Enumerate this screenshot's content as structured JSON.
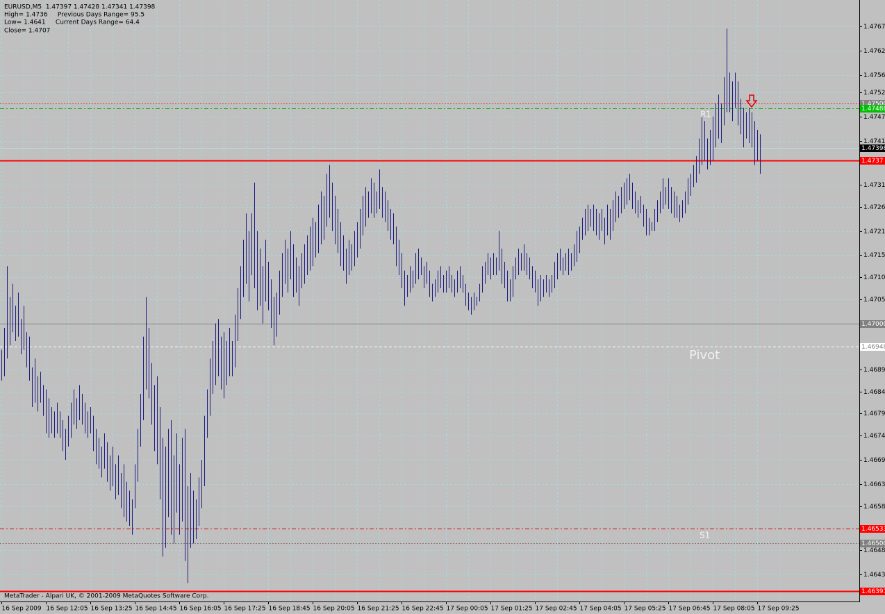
{
  "chart_data": {
    "type": "ohlc",
    "info": [
      "EURUSD,M5  1.47397 1.47428 1.47341 1.47398",
      "High= 1.4736     Previous Days Range= 95.5",
      "Low= 1.4641     Current Days Range= 64.4",
      "Close= 1.4707"
    ],
    "footer": "MetaTrader - Alpari UK, © 2001-2009 MetaQuotes Software Corp.",
    "color": "#1c1c80",
    "grid": true,
    "ylim": [
      1.46368,
      1.47735
    ],
    "yticks": [
      1.47675,
      {
        "value": 1.4762,
        "label": "1.47620"
      },
      1.47565,
      1.47525,
      {
        "value": 1.4747,
        "label": "1.47470"
      },
      1.47415,
      1.47315,
      1.47265,
      {
        "value": 1.4721,
        "label": "1.47210"
      },
      1.47155,
      1.47105,
      1.47055,
      1.46895,
      1.46845,
      1.46795,
      1.46745,
      {
        "value": 1.4669,
        "label": "1.46690"
      },
      1.46635,
      1.46585,
      1.46485,
      {
        "value": 1.4643,
        "label": "1.46430"
      }
    ],
    "xtick_labels": [
      "16 Sep 2009",
      "16 Sep 12:05",
      "16 Sep 13:25",
      "16 Sep 14:45",
      "16 Sep 16:05",
      "16 Sep 17:25",
      "16 Sep 18:45",
      "16 Sep 20:05",
      "16 Sep 21:25",
      "16 Sep 22:45",
      "17 Sep 00:05",
      "17 Sep 01:25",
      "17 Sep 02:45",
      "17 Sep 04:05",
      "17 Sep 05:25",
      "17 Sep 06:45",
      "17 Sep 08:05",
      "17 Sep 09:25"
    ],
    "levels": [
      {
        "value": {
          "value": 1.475,
          "label": "1.47500"
        },
        "color": "#d04040",
        "style": "dot",
        "box": "#808080"
      },
      {
        "value": 1.47488,
        "color": "#00b000",
        "style": "dashdot",
        "box": "#00c000"
      },
      {
        "value": 1.47398,
        "color": "#b8dcdc",
        "style": "solid",
        "box": "#000000"
      },
      {
        "value": 1.4737,
        "color": "#ff0000",
        "style": "thick",
        "box": "#ff0000"
      },
      {
        "value": {
          "value": 1.47,
          "label": "1.47000"
        },
        "color": "#808080",
        "style": "solid",
        "box": "#808080"
      },
      {
        "value": 1.46948,
        "color": "#ffffff",
        "style": "dash",
        "box": "#ffffff"
      },
      {
        "value": 1.46533,
        "color": "#e00000",
        "style": "dashdot",
        "box": "#ff0000"
      },
      {
        "value": {
          "value": 1.465,
          "label": "1.46500"
        },
        "color": "#808080",
        "style": "dot",
        "box": "#808080"
      },
      {
        "value": 1.46391,
        "color": "#ff0000",
        "style": "thick",
        "box": "#ff0000"
      }
    ],
    "annotations": [
      "R1",
      "Pivot",
      "S1"
    ],
    "high": [
      1.4694,
      1.4699,
      1.4713,
      1.4706,
      1.4709,
      1.4704,
      1.4707,
      1.4701,
      1.4704,
      1.4698,
      1.4697,
      1.469,
      1.4692,
      1.4688,
      1.4689,
      1.4686,
      1.4685,
      1.4683,
      1.4681,
      1.468,
      1.4682,
      1.468,
      1.4678,
      1.4676,
      1.4679,
      1.4682,
      1.4685,
      1.4683,
      1.4686,
      1.4684,
      1.4682,
      1.468,
      1.4681,
      1.4679,
      1.4676,
      1.4674,
      1.4672,
      1.4675,
      1.4673,
      1.467,
      1.4672,
      1.4668,
      1.467,
      1.4666,
      1.4668,
      1.4664,
      1.4662,
      1.466,
      1.4668,
      1.4676,
      1.4684,
      1.4697,
      1.4706,
      1.4699,
      1.4691,
      1.4686,
      1.4688,
      1.4681,
      1.4674,
      1.4672,
      1.4676,
      1.4678,
      1.467,
      1.4675,
      1.4668,
      1.4674,
      1.4676,
      1.4663,
      1.4666,
      1.4662,
      1.466,
      1.4665,
      1.4669,
      1.4679,
      1.4685,
      1.4692,
      1.4696,
      1.47,
      1.4701,
      1.4697,
      1.4698,
      1.4696,
      1.4699,
      1.4696,
      1.4702,
      1.4708,
      1.4713,
      1.4719,
      1.4725,
      1.4721,
      1.4725,
      1.4732,
      1.4721,
      1.4717,
      1.4713,
      1.4719,
      1.4714,
      1.471,
      1.4706,
      1.4707,
      1.4712,
      1.4716,
      1.4719,
      1.4717,
      1.4721,
      1.4718,
      1.4715,
      1.4713,
      1.4716,
      1.4718,
      1.472,
      1.4722,
      1.4724,
      1.4723,
      1.4727,
      1.473,
      1.4729,
      1.4734,
      1.4736,
      1.4732,
      1.4729,
      1.4726,
      1.4723,
      1.472,
      1.4717,
      1.4719,
      1.4718,
      1.4721,
      1.4723,
      1.4726,
      1.4729,
      1.4731,
      1.473,
      1.4733,
      1.4732,
      1.473,
      1.4735,
      1.4731,
      1.473,
      1.4728,
      1.4726,
      1.4725,
      1.4722,
      1.4719,
      1.4716,
      1.4712,
      1.4711,
      1.4713,
      1.4712,
      1.4716,
      1.4717,
      1.4715,
      1.4713,
      1.4714,
      1.4712,
      1.4709,
      1.471,
      1.4712,
      1.4713,
      1.4711,
      1.4712,
      1.4713,
      1.4711,
      1.471,
      1.4712,
      1.4713,
      1.4711,
      1.4709,
      1.4707,
      1.4706,
      1.4707,
      1.4706,
      1.4709,
      1.4713,
      1.4714,
      1.4716,
      1.4715,
      1.4716,
      1.4715,
      1.4721,
      1.4717,
      1.4714,
      1.4712,
      1.471,
      1.4713,
      1.4715,
      1.4717,
      1.4716,
      1.4718,
      1.4716,
      1.4715,
      1.4713,
      1.4712,
      1.471,
      1.4711,
      1.471,
      1.4711,
      1.471,
      1.4711,
      1.4714,
      1.4716,
      1.4717,
      1.4715,
      1.4716,
      1.4717,
      1.4716,
      1.4718,
      1.4721,
      1.4722,
      1.4724,
      1.4726,
      1.4727,
      1.4726,
      1.4727,
      1.4726,
      1.4725,
      1.4726,
      1.4724,
      1.4727,
      1.4726,
      1.4728,
      1.473,
      1.4729,
      1.4731,
      1.4732,
      1.4733,
      1.4734,
      1.4732,
      1.473,
      1.4728,
      1.4729,
      1.4727,
      1.4726,
      1.4724,
      1.4723,
      1.4726,
      1.4728,
      1.473,
      1.4733,
      1.4731,
      1.4733,
      1.4731,
      1.473,
      1.4729,
      1.4727,
      1.4728,
      1.473,
      1.4733,
      1.4734,
      1.4736,
      1.4738,
      1.4742,
      1.4747,
      1.4746,
      1.4742,
      1.4744,
      1.4747,
      1.475,
      1.4752,
      1.475,
      1.4756,
      1.4767,
      1.4757,
      1.4755,
      1.4757,
      1.4755,
      1.4751,
      1.4749,
      1.4748,
      1.4749,
      1.4748,
      1.4746,
      1.4744,
      1.4743
    ],
    "low": [
      1.4687,
      1.4688,
      1.4692,
      1.4695,
      1.4698,
      1.4696,
      1.4697,
      1.4693,
      1.4694,
      1.469,
      1.4687,
      1.4681,
      1.4682,
      1.468,
      1.4682,
      1.4679,
      1.4675,
      1.4674,
      1.4675,
      1.4674,
      1.4675,
      1.4674,
      1.4671,
      1.4669,
      1.4672,
      1.4674,
      1.4677,
      1.4676,
      1.4678,
      1.4677,
      1.4675,
      1.4674,
      1.4675,
      1.4671,
      1.4668,
      1.4667,
      1.4665,
      1.4667,
      1.4664,
      1.4662,
      1.4663,
      1.466,
      1.4661,
      1.4658,
      1.4656,
      1.4655,
      1.4654,
      1.4652,
      1.4658,
      1.4664,
      1.4672,
      1.4678,
      1.4685,
      1.4683,
      1.4677,
      1.4671,
      1.4668,
      1.466,
      1.4647,
      1.4649,
      1.4656,
      1.4652,
      1.465,
      1.4657,
      1.4652,
      1.4655,
      1.4646,
      1.4641,
      1.4649,
      1.465,
      1.4651,
      1.4654,
      1.4658,
      1.4663,
      1.4674,
      1.4679,
      1.4684,
      1.4686,
      1.4688,
      1.4685,
      1.4683,
      1.4686,
      1.4688,
      1.4688,
      1.469,
      1.4696,
      1.4701,
      1.4706,
      1.4709,
      1.4705,
      1.4711,
      1.4708,
      1.4703,
      1.4704,
      1.47,
      1.4705,
      1.4703,
      1.4699,
      1.4695,
      1.4697,
      1.4702,
      1.4706,
      1.4709,
      1.4707,
      1.471,
      1.4706,
      1.4707,
      1.4704,
      1.4708,
      1.4709,
      1.4711,
      1.4712,
      1.4713,
      1.4715,
      1.4716,
      1.4718,
      1.4719,
      1.4722,
      1.4724,
      1.4721,
      1.4718,
      1.4716,
      1.4713,
      1.4712,
      1.4709,
      1.4711,
      1.4712,
      1.4713,
      1.4715,
      1.4717,
      1.472,
      1.4722,
      1.4724,
      1.4725,
      1.4724,
      1.4725,
      1.4726,
      1.4724,
      1.4723,
      1.4721,
      1.4719,
      1.4718,
      1.4713,
      1.4711,
      1.4708,
      1.4704,
      1.4706,
      1.4707,
      1.4708,
      1.4709,
      1.471,
      1.4711,
      1.4708,
      1.4709,
      1.4706,
      1.4705,
      1.4706,
      1.4707,
      1.4708,
      1.4707,
      1.4707,
      1.4708,
      1.4707,
      1.4706,
      1.4707,
      1.4708,
      1.4707,
      1.4704,
      1.4703,
      1.4702,
      1.4703,
      1.4704,
      1.4705,
      1.4707,
      1.4709,
      1.4711,
      1.471,
      1.4711,
      1.4711,
      1.4712,
      1.4709,
      1.4708,
      1.4705,
      1.4705,
      1.4706,
      1.471,
      1.4711,
      1.4712,
      1.4712,
      1.4711,
      1.471,
      1.4708,
      1.4707,
      1.4704,
      1.4705,
      1.4706,
      1.4707,
      1.4706,
      1.4707,
      1.4708,
      1.471,
      1.4712,
      1.4711,
      1.4712,
      1.4711,
      1.4712,
      1.4713,
      1.4714,
      1.4716,
      1.4719,
      1.472,
      1.4721,
      1.4722,
      1.4721,
      1.472,
      1.4719,
      1.4721,
      1.4718,
      1.472,
      1.4719,
      1.4721,
      1.4723,
      1.4724,
      1.4725,
      1.4726,
      1.4727,
      1.4728,
      1.4726,
      1.4725,
      1.4724,
      1.4725,
      1.4722,
      1.472,
      1.472,
      1.4721,
      1.4721,
      1.4723,
      1.4725,
      1.4726,
      1.4727,
      1.4726,
      1.4725,
      1.4724,
      1.4724,
      1.4723,
      1.4724,
      1.4725,
      1.4727,
      1.4729,
      1.4731,
      1.4732,
      1.4734,
      1.4736,
      1.4737,
      1.4735,
      1.4736,
      1.4737,
      1.474,
      1.4742,
      1.4741,
      1.4745,
      1.4748,
      1.4748,
      1.4746,
      1.4749,
      1.4745,
      1.4743,
      1.474,
      1.4742,
      1.4741,
      1.474,
      1.4736,
      1.4737,
      1.4734
    ]
  }
}
